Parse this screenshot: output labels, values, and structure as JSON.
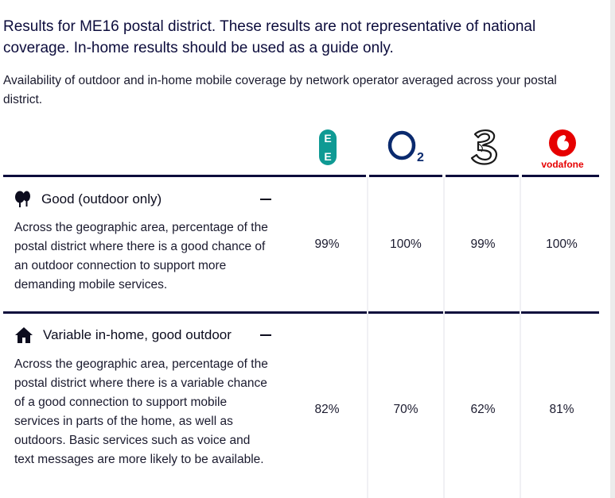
{
  "header": {
    "headline": "Results for ME16 postal district. These results are not representative of national coverage. In-home results should be used as a guide only.",
    "subheading": "Availability of outdoor and in-home mobile coverage by network operator averaged across your postal district."
  },
  "operators": [
    {
      "name": "EE",
      "logo": "ee-logo",
      "color": "#0f9a94"
    },
    {
      "name": "O2",
      "logo": "o2-logo",
      "color": "#0a2a6e"
    },
    {
      "name": "Three",
      "logo": "three-logo",
      "color": "#1a1a1a"
    },
    {
      "name": "vodafone",
      "logo": "vodafone-logo",
      "color": "#e60000"
    }
  ],
  "sections": [
    {
      "title": "Good (outdoor only)",
      "icon": "trees-icon",
      "description": "Across the geographic area, percentage of the postal district where there is a good chance of an outdoor connection to support more demanding mobile services.",
      "values": [
        "99%",
        "100%",
        "99%",
        "100%"
      ]
    },
    {
      "title": "Variable in-home, good outdoor",
      "icon": "house-icon",
      "description": "Across the geographic area, percentage of the postal district where there is a variable chance of a good connection to support mobile services in parts of the home, as well as outdoors. Basic services such as voice and text messages are more likely to be available.",
      "values": [
        "82%",
        "70%",
        "62%",
        "81%"
      ]
    }
  ]
}
